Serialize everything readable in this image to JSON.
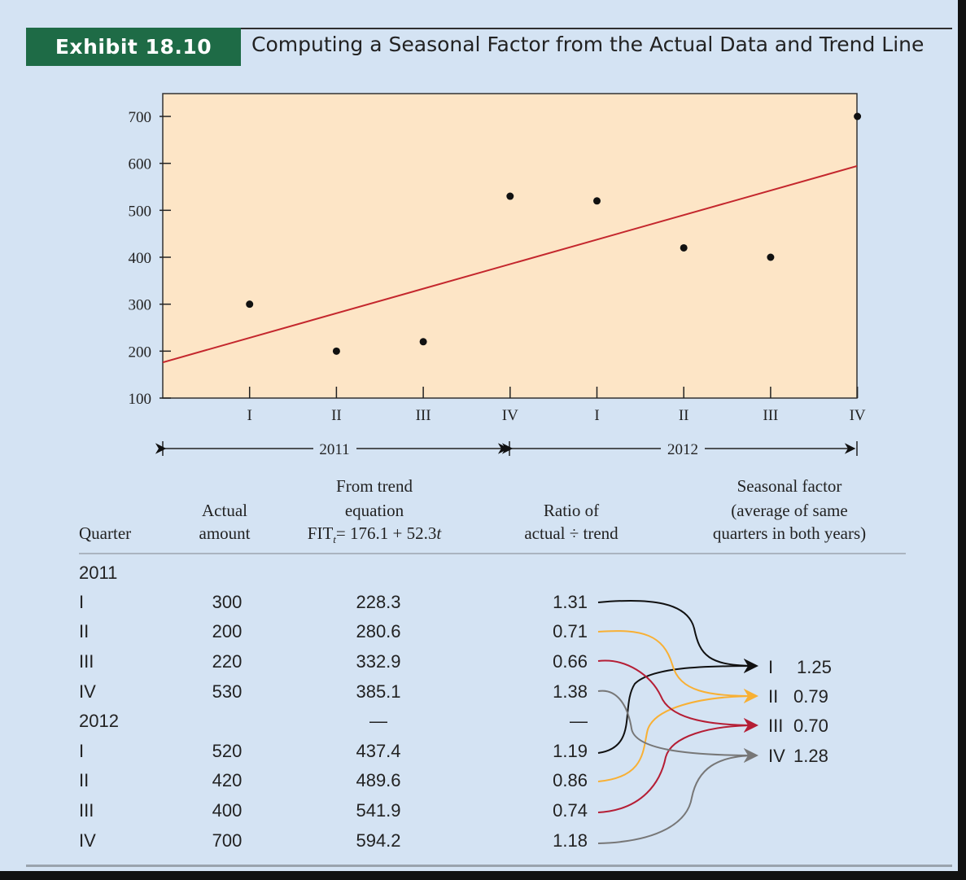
{
  "exhibit": {
    "number": "Exhibit 18.10",
    "title": "Computing a Seasonal Factor from the Actual Data and Trend Line"
  },
  "colors": {
    "plot_background": "#fde5c6",
    "trend_line": "#c4272d",
    "points": "#111111",
    "q1_arrow": "#111111",
    "q2_arrow": "#f8b034",
    "q3_arrow": "#b51e35",
    "q4_arrow": "#777777"
  },
  "chart_data": {
    "type": "scatter",
    "y_ticks": [
      "100",
      "200",
      "300",
      "400",
      "500",
      "600",
      "700"
    ],
    "ylim": [
      100,
      700
    ],
    "categories": [
      "I",
      "II",
      "III",
      "IV",
      "I",
      "II",
      "III",
      "IV"
    ],
    "year_labels": [
      "2011",
      "2012"
    ],
    "series": [
      {
        "values": [
          300,
          200,
          220,
          530,
          520,
          420,
          400,
          700
        ]
      }
    ],
    "trend_line": {
      "intercept": 176.1,
      "slope": 52.3,
      "t_range": [
        0,
        8
      ]
    },
    "grid": false
  },
  "table": {
    "headers": {
      "quarter": "Quarter",
      "actual": [
        "Actual",
        "amount"
      ],
      "trend": [
        "From trend",
        "equation",
        "FIT"
      ],
      "trend_eq_tail": "= 176.1 + 52.3",
      "trend_sub": "t",
      "trend_var": "t",
      "ratio": [
        "Ratio of",
        "actual ÷ trend"
      ],
      "seasonal": [
        "Seasonal factor",
        "(average of same",
        "quarters in both years)"
      ]
    },
    "rows": [
      {
        "quarter": "2011",
        "actual": "",
        "trend": "",
        "ratio": ""
      },
      {
        "quarter": "I",
        "actual": "300",
        "trend": "228.3",
        "ratio": "1.31"
      },
      {
        "quarter": "II",
        "actual": "200",
        "trend": "280.6",
        "ratio": "0.71"
      },
      {
        "quarter": "III",
        "actual": "220",
        "trend": "332.9",
        "ratio": "0.66"
      },
      {
        "quarter": "IV",
        "actual": "530",
        "trend": "385.1",
        "ratio": "1.38"
      },
      {
        "quarter": "2012",
        "actual": "",
        "trend": "—",
        "ratio": "—"
      },
      {
        "quarter": "I",
        "actual": "520",
        "trend": "437.4",
        "ratio": "1.19"
      },
      {
        "quarter": "II",
        "actual": "420",
        "trend": "489.6",
        "ratio": "0.86"
      },
      {
        "quarter": "III",
        "actual": "400",
        "trend": "541.9",
        "ratio": "0.74"
      },
      {
        "quarter": "IV",
        "actual": "700",
        "trend": "594.2",
        "ratio": "1.18"
      }
    ],
    "seasonal_factors": [
      {
        "quarter": "I",
        "value": "1.25"
      },
      {
        "quarter": "II",
        "value": "0.79"
      },
      {
        "quarter": "III",
        "value": "0.70"
      },
      {
        "quarter": "IV",
        "value": "1.28"
      }
    ]
  }
}
